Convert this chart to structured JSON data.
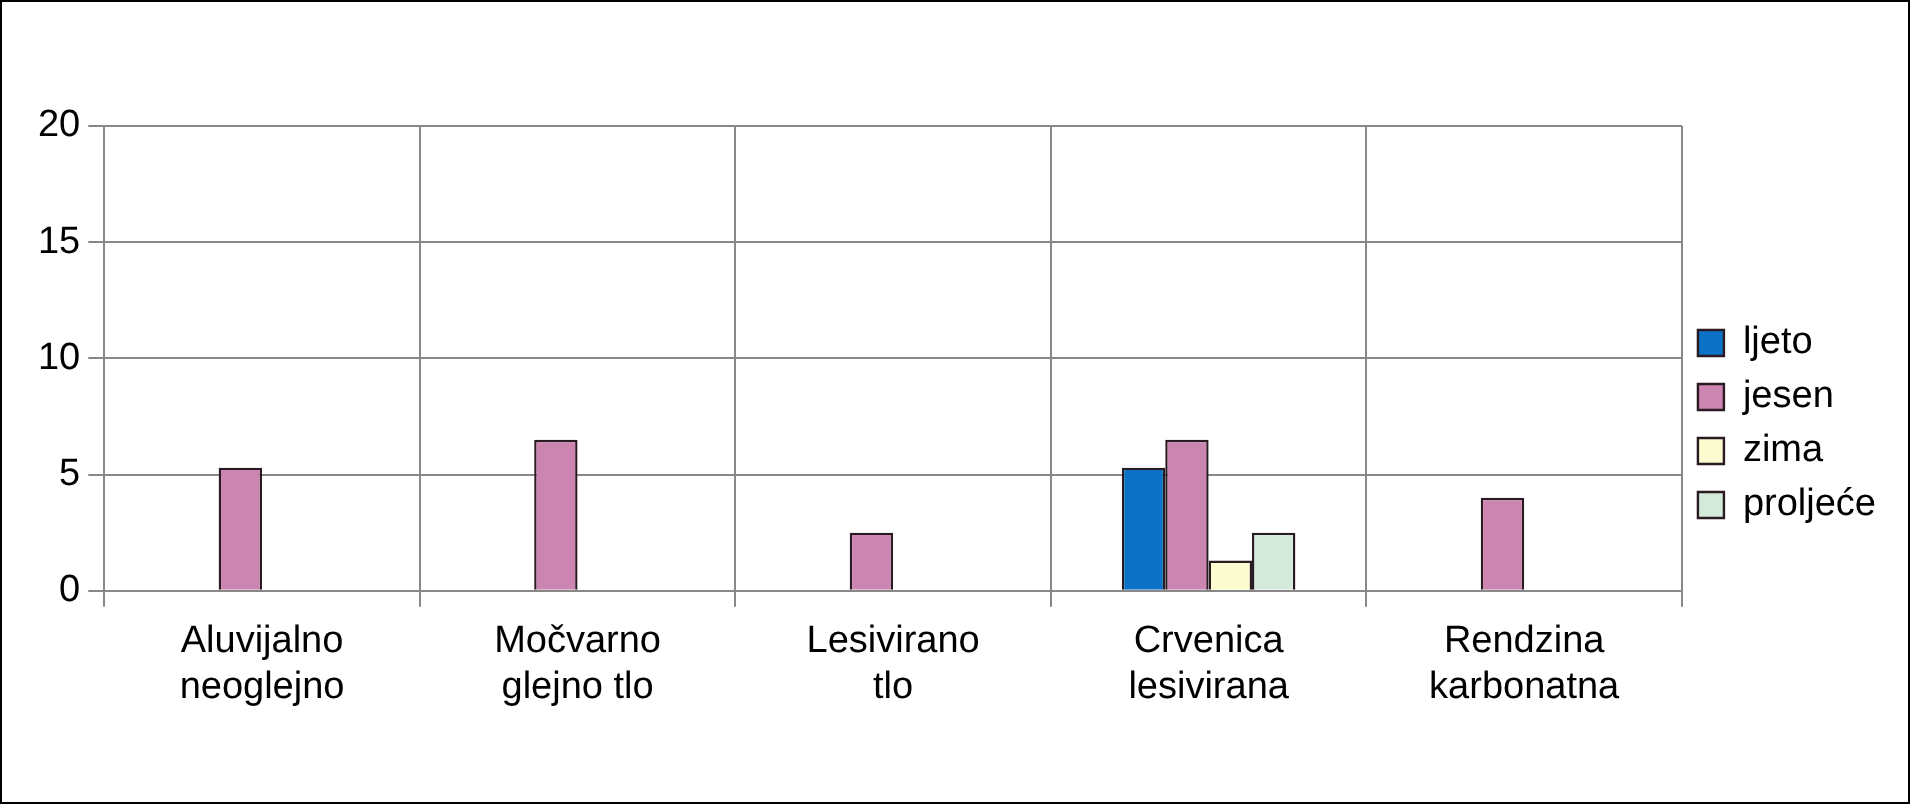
{
  "chart_data": {
    "type": "bar",
    "categories": [
      "Aluvijalno\nneoglejno",
      "Močvarno\nglejno tlo",
      "Lesivirano\ntlo",
      "Crvenica\nlesivirana",
      "Rendzina\nkarbonatna"
    ],
    "series": [
      {
        "name": "ljeto",
        "color": "#0b72c8",
        "values": [
          null,
          null,
          null,
          5.3,
          null
        ]
      },
      {
        "name": "jesen",
        "color": "#cc84b0",
        "values": [
          5.3,
          6.5,
          2.5,
          6.5,
          4.0
        ]
      },
      {
        "name": "zima",
        "color": "#fdfbd0",
        "values": [
          null,
          null,
          null,
          1.3,
          null
        ]
      },
      {
        "name": "proljeće",
        "color": "#d6eadb",
        "values": [
          null,
          null,
          null,
          2.5,
          null
        ]
      }
    ],
    "ylim": [
      0,
      20
    ],
    "yticks": [
      0,
      5,
      10,
      15,
      20
    ],
    "grid": true,
    "legend": "right"
  }
}
